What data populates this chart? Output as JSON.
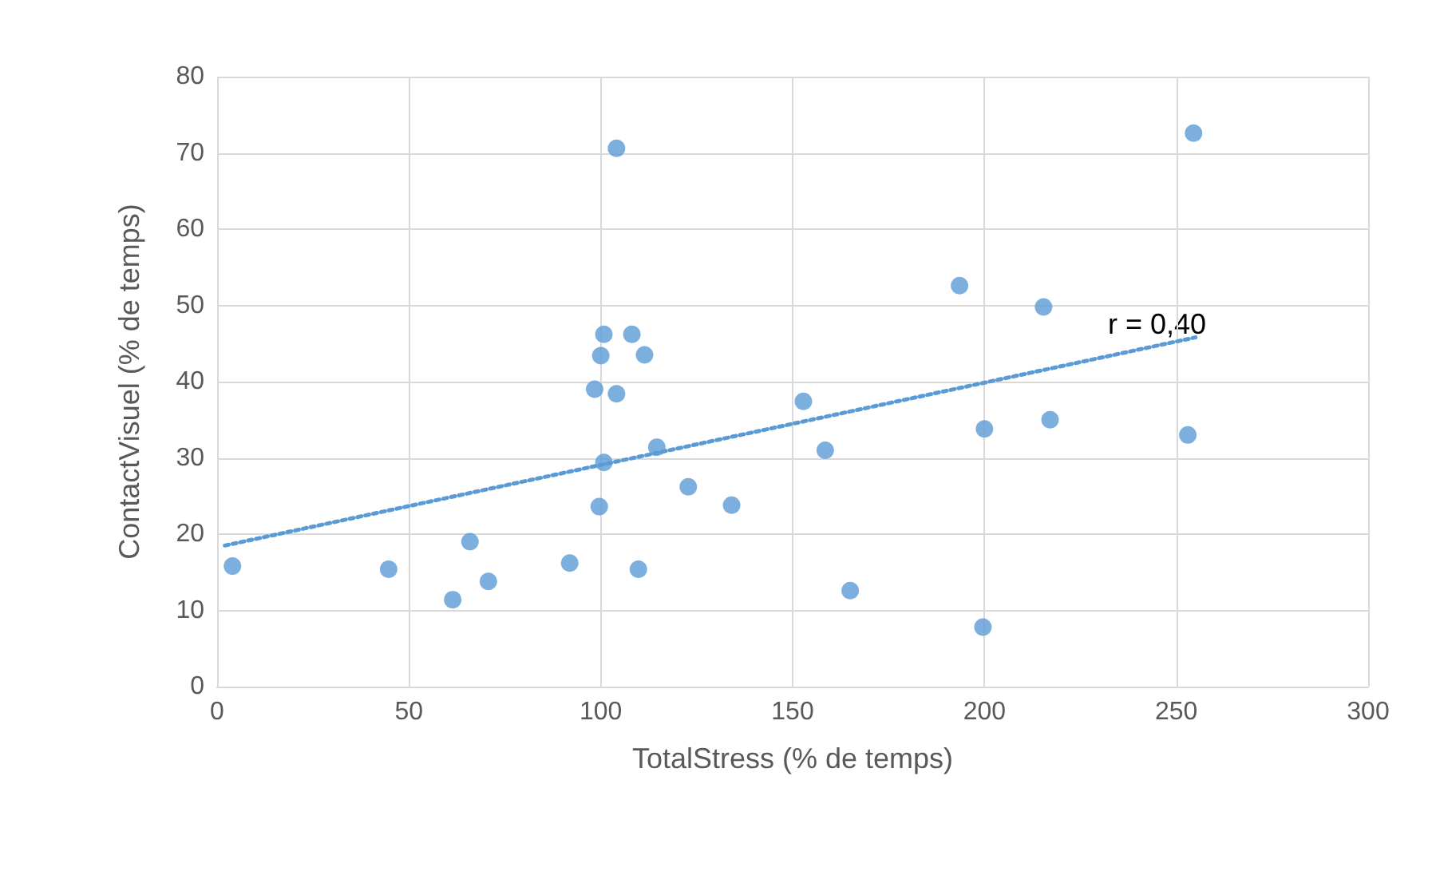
{
  "chart_data": {
    "type": "scatter",
    "xlabel": "TotalStress (% de temps)",
    "ylabel": "ContactVisuel (% de temps)",
    "xlim": [
      0,
      300
    ],
    "xticks": [
      0,
      50,
      100,
      150,
      200,
      250,
      300
    ],
    "ylim": [
      0,
      80
    ],
    "yticks": [
      0,
      10,
      20,
      30,
      40,
      50,
      60,
      70,
      80
    ],
    "grid": true,
    "marker": "circle",
    "series": [
      {
        "color": "#5b9bd5",
        "x": [
          4,
          44.7,
          61.4,
          65.9,
          70.7,
          91.9,
          98.4,
          100,
          100.8,
          99.6,
          100.8,
          104.1,
          104.1,
          108.1,
          111.4,
          109.8,
          114.6,
          122.8,
          134.1,
          152.8,
          158.5,
          165,
          193.5,
          199.6,
          200,
          215.4,
          217.1,
          253,
          254.5
        ],
        "values": [
          15.8,
          15.4,
          11.4,
          19,
          13.8,
          16.2,
          39,
          43.4,
          46.2,
          23.6,
          29.4,
          38.4,
          70.6,
          46.2,
          43.5,
          15.4,
          31.4,
          26.2,
          23.8,
          37.4,
          31,
          12.6,
          52.6,
          7.8,
          33.8,
          49.8,
          35,
          33,
          72.6
        ]
      },
      {
        "type": "line",
        "color": "#5b9bd5",
        "line_style": "dotted",
        "marker": "none",
        "x": [
          2,
          255
        ],
        "values": [
          18.5,
          45.8
        ]
      }
    ],
    "annotations": [
      "r = 0,40"
    ]
  }
}
